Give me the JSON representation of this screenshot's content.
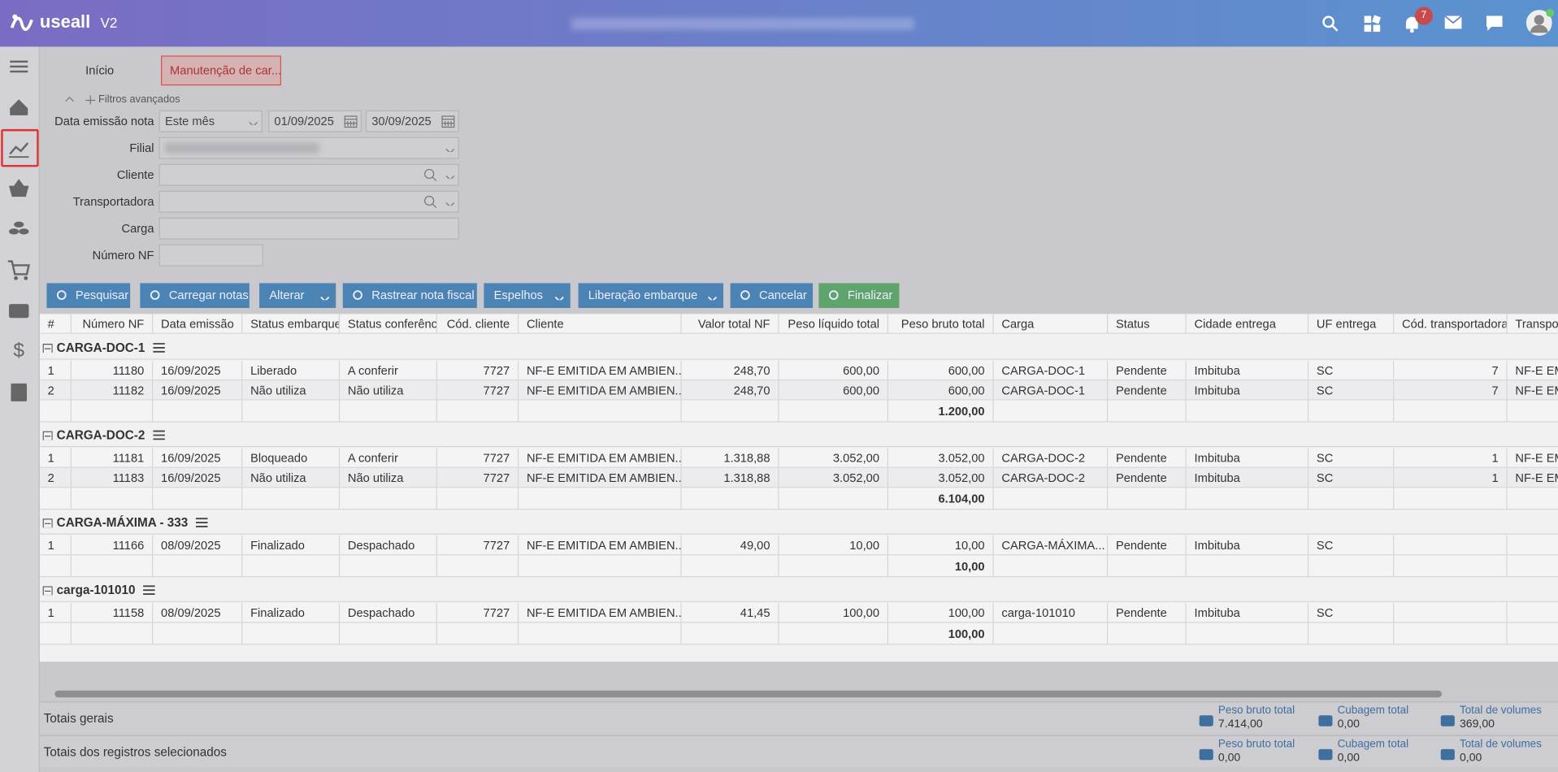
{
  "header": {
    "logo": "useall",
    "version": "V2",
    "notification_count": "7"
  },
  "tabs": [
    "Início",
    "Manutenção de car..."
  ],
  "filters": {
    "toggle": "Filtros avançados",
    "date_label": "Data emissão nota",
    "period": "Este mês",
    "date_from": "01/09/2025",
    "date_to": "30/09/2025",
    "fields": [
      "Filial",
      "Cliente",
      "Transportadora",
      "Carga",
      "Número NF"
    ]
  },
  "buttons": [
    "Pesquisar",
    "Carregar notas",
    "Alterar",
    "Rastrear nota fiscal",
    "Espelhos",
    "Liberação embarque",
    "Cancelar",
    "Finalizar"
  ],
  "table": {
    "columns": [
      "#",
      "Número NF",
      "Data emissão",
      "Status embarque",
      "Status conferência",
      "Cód. cliente",
      "Cliente",
      "Valor total NF",
      "Peso líquido total",
      "Peso bruto total",
      "Carga",
      "Status",
      "Cidade entrega",
      "UF entrega",
      "Cód. transportadora",
      "Transportadora"
    ],
    "groups": [
      {
        "name": "CARGA-DOC-1",
        "total": "1.200,00",
        "rows": [
          [
            "1",
            "11180",
            "16/09/2025",
            "Liberado",
            "A conferir",
            "7727",
            "NF-E EMITIDA EM AMBIEN...",
            "248,70",
            "600,00",
            "600,00",
            "CARGA-DOC-1",
            "Pendente",
            "Imbituba",
            "SC",
            "7",
            "NF-E EMITIDA EM AMBIEN..."
          ],
          [
            "2",
            "11182",
            "16/09/2025",
            "Não utiliza",
            "Não utiliza",
            "7727",
            "NF-E EMITIDA EM AMBIEN...",
            "248,70",
            "600,00",
            "600,00",
            "CARGA-DOC-1",
            "Pendente",
            "Imbituba",
            "SC",
            "7",
            "NF-E EMITIDA EM AMBIEN..."
          ]
        ]
      },
      {
        "name": "CARGA-DOC-2",
        "total": "6.104,00",
        "rows": [
          [
            "1",
            "11181",
            "16/09/2025",
            "Bloqueado",
            "A conferir",
            "7727",
            "NF-E EMITIDA EM AMBIEN...",
            "1.318,88",
            "3.052,00",
            "3.052,00",
            "CARGA-DOC-2",
            "Pendente",
            "Imbituba",
            "SC",
            "1",
            "NF-E EMITIDA EM AMBIEN..."
          ],
          [
            "2",
            "11183",
            "16/09/2025",
            "Não utiliza",
            "Não utiliza",
            "7727",
            "NF-E EMITIDA EM AMBIEN...",
            "1.318,88",
            "3.052,00",
            "3.052,00",
            "CARGA-DOC-2",
            "Pendente",
            "Imbituba",
            "SC",
            "1",
            "NF-E EMITIDA EM AMBIEN..."
          ]
        ]
      },
      {
        "name": "CARGA-MÁXIMA - 333",
        "total": "10,00",
        "rows": [
          [
            "1",
            "11166",
            "08/09/2025",
            "Finalizado",
            "Despachado",
            "7727",
            "NF-E EMITIDA EM AMBIEN...",
            "49,00",
            "10,00",
            "10,00",
            "CARGA-MÁXIMA...",
            "Pendente",
            "Imbituba",
            "SC",
            null,
            null
          ]
        ]
      },
      {
        "name": "carga-101010",
        "total": "100,00",
        "rows": [
          [
            "1",
            "11158",
            "08/09/2025",
            "Finalizado",
            "Despachado",
            "7727",
            "NF-E EMITIDA EM AMBIEN...",
            "41,45",
            "100,00",
            "100,00",
            "carga-101010",
            "Pendente",
            "Imbituba",
            "SC",
            null,
            null
          ]
        ]
      }
    ]
  },
  "totals": [
    {
      "label": "Totais gerais",
      "items": [
        {
          "label": "Peso bruto total",
          "value": "7.414,00"
        },
        {
          "label": "Cubagem total",
          "value": "0,00"
        },
        {
          "label": "Total de volumes",
          "value": "369,00"
        }
      ]
    },
    {
      "label": "Totais dos registros selecionados",
      "items": [
        {
          "label": "Peso bruto total",
          "value": "0,00"
        },
        {
          "label": "Cubagem total",
          "value": "0,00"
        },
        {
          "label": "Total de volumes",
          "value": "0,00"
        }
      ]
    }
  ]
}
